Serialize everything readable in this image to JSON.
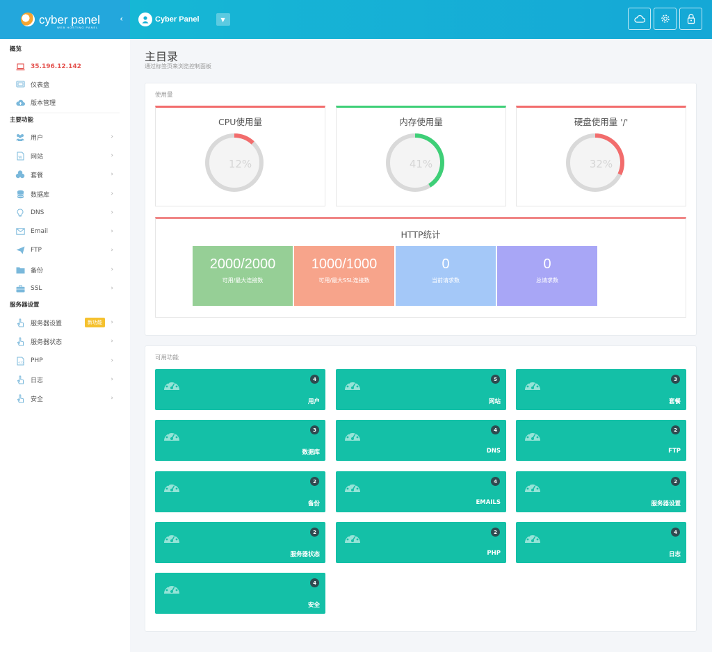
{
  "header": {
    "logo_text": "cyber panel",
    "logo_sub": "WEB HOSTING PANEL",
    "user_name": "Cyber Panel",
    "icons": [
      "cloud-icon",
      "gear-icon",
      "lock-icon"
    ]
  },
  "sidebar": {
    "section_overview": "概览",
    "ip": "35.196.12.142",
    "dashboard": "仪表盘",
    "version": "版本管理",
    "section_main": "主要功能",
    "main_items": [
      "用户",
      "网站",
      "套餐",
      "数据库",
      "DNS",
      "Email",
      "FTP",
      "备份",
      "SSL"
    ],
    "section_server": "服务器设置",
    "server_items": [
      "服务器设置",
      "服务器状态",
      "PHP",
      "日志",
      "安全"
    ],
    "new_badge": "新功能"
  },
  "page": {
    "title": "主目录",
    "subtitle": "通过标签页来浏览控制面板"
  },
  "usage": {
    "panel_title": "使用量",
    "cards": [
      {
        "label": "CPU使用量",
        "value": 12,
        "text": "12%",
        "color": "#f26c6c"
      },
      {
        "label": "内存使用量",
        "value": 41,
        "text": "41%",
        "color": "#3ecf77"
      },
      {
        "label": "硬盘使用量 '/'",
        "value": 32,
        "text": "32%",
        "color": "#f26c6c"
      }
    ]
  },
  "http": {
    "title": "HTTP统计",
    "stats": [
      {
        "num": "2000/2000",
        "cap": "可用/最大连接数",
        "color": "#96cf96"
      },
      {
        "num": "1000/1000",
        "cap": "可用/最大SSL连接数",
        "color": "#f7a48b"
      },
      {
        "num": "0",
        "cap": "当前请求数",
        "color": "#a4c8f8"
      },
      {
        "num": "0",
        "cap": "总请求数",
        "color": "#a8a6f6"
      }
    ]
  },
  "features": {
    "panel_title": "可用功能",
    "items": [
      {
        "name": "用户",
        "count": "4"
      },
      {
        "name": "网站",
        "count": "5"
      },
      {
        "name": "套餐",
        "count": "3"
      },
      {
        "name": "数据库",
        "count": "3"
      },
      {
        "name": "DNS",
        "count": "4"
      },
      {
        "name": "FTP",
        "count": "2"
      },
      {
        "name": "备份",
        "count": "2"
      },
      {
        "name": "EMAILS",
        "count": "4"
      },
      {
        "name": "服务器设置",
        "count": "2"
      },
      {
        "name": "服务器状态",
        "count": "2"
      },
      {
        "name": "PHP",
        "count": "2"
      },
      {
        "name": "日志",
        "count": "4"
      },
      {
        "name": "安全",
        "count": "4"
      }
    ]
  }
}
